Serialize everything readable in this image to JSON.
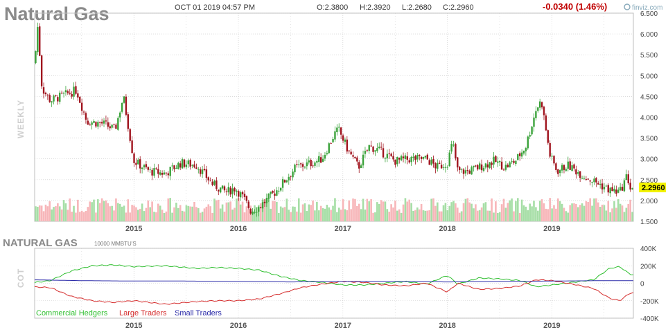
{
  "header": {
    "symbol_title": "Natural Gas",
    "datetime": "OCT 01 2019 04:57 PM",
    "open": "O:2.3800",
    "high": "H:2.3920",
    "low": "L:2.2680",
    "close": "C:2.2960",
    "change": "-0.0340 (1.46%)",
    "brand": "finviz.com"
  },
  "colors": {
    "up": "#3aa23a",
    "down": "#a0141e",
    "vol_up": "#a6dea6",
    "vol_down": "#f7b6b9",
    "commercial": "#2fbf2f",
    "large": "#d42a2a",
    "small": "#2a2aa8",
    "grid": "#c8c8c8",
    "last_bg": "#f3f300"
  },
  "price_panel": {
    "period_label": "WEEKLY",
    "last_price": "2.2960",
    "y_ticks": [
      "1.500",
      "2.000",
      "2.500",
      "3.000",
      "3.500",
      "4.000",
      "4.500",
      "5.000",
      "5.500",
      "6.000",
      "6.500"
    ],
    "x_ticks": [
      "2015",
      "2016",
      "2017",
      "2018",
      "2019"
    ]
  },
  "cot_panel": {
    "label": "COT",
    "title": "NATURAL GAS",
    "units": "10000 MMBTU'S",
    "y_ticks": [
      "400K",
      "200K",
      "0",
      "-200K",
      "-400K"
    ],
    "x_ticks": [
      "2015",
      "2016",
      "2017",
      "2018",
      "2019"
    ],
    "legend": [
      "Commercial Hedgers",
      "Large Traders",
      "Small Traders"
    ]
  },
  "chart_data": [
    {
      "type": "candlestick",
      "title": "Natural Gas",
      "timeframe": "weekly",
      "ylim": [
        1.5,
        6.5
      ],
      "y_scale": "linear",
      "grid": true,
      "close_path": [
        {
          "x": 2014.0,
          "y": 4.6
        },
        {
          "x": 2014.05,
          "y": 5.3
        },
        {
          "x": 2014.08,
          "y": 6.2
        },
        {
          "x": 2014.12,
          "y": 4.7
        },
        {
          "x": 2014.2,
          "y": 4.4
        },
        {
          "x": 2014.3,
          "y": 4.5
        },
        {
          "x": 2014.45,
          "y": 4.65
        },
        {
          "x": 2014.55,
          "y": 3.9
        },
        {
          "x": 2014.7,
          "y": 3.85
        },
        {
          "x": 2014.82,
          "y": 3.7
        },
        {
          "x": 2014.9,
          "y": 4.5
        },
        {
          "x": 2015.0,
          "y": 2.95
        },
        {
          "x": 2015.15,
          "y": 2.7
        },
        {
          "x": 2015.3,
          "y": 2.65
        },
        {
          "x": 2015.45,
          "y": 2.9
        },
        {
          "x": 2015.6,
          "y": 2.85
        },
        {
          "x": 2015.75,
          "y": 2.4
        },
        {
          "x": 2015.88,
          "y": 2.2
        },
        {
          "x": 2015.97,
          "y": 2.3
        },
        {
          "x": 2016.05,
          "y": 2.05
        },
        {
          "x": 2016.12,
          "y": 1.75
        },
        {
          "x": 2016.2,
          "y": 1.85
        },
        {
          "x": 2016.35,
          "y": 2.2
        },
        {
          "x": 2016.45,
          "y": 2.5
        },
        {
          "x": 2016.55,
          "y": 2.8
        },
        {
          "x": 2016.7,
          "y": 2.9
        },
        {
          "x": 2016.8,
          "y": 3.0
        },
        {
          "x": 2016.92,
          "y": 3.6
        },
        {
          "x": 2016.96,
          "y": 3.7
        },
        {
          "x": 2017.05,
          "y": 3.2
        },
        {
          "x": 2017.15,
          "y": 2.8
        },
        {
          "x": 2017.25,
          "y": 3.3
        },
        {
          "x": 2017.35,
          "y": 3.2
        },
        {
          "x": 2017.5,
          "y": 2.95
        },
        {
          "x": 2017.65,
          "y": 3.0
        },
        {
          "x": 2017.8,
          "y": 3.0
        },
        {
          "x": 2017.9,
          "y": 2.8
        },
        {
          "x": 2018.0,
          "y": 2.9
        },
        {
          "x": 2018.05,
          "y": 3.4
        },
        {
          "x": 2018.1,
          "y": 2.7
        },
        {
          "x": 2018.2,
          "y": 2.7
        },
        {
          "x": 2018.35,
          "y": 2.85
        },
        {
          "x": 2018.45,
          "y": 2.95
        },
        {
          "x": 2018.55,
          "y": 2.8
        },
        {
          "x": 2018.65,
          "y": 2.95
        },
        {
          "x": 2018.75,
          "y": 3.3
        },
        {
          "x": 2018.85,
          "y": 4.2
        },
        {
          "x": 2018.9,
          "y": 4.4
        },
        {
          "x": 2018.98,
          "y": 3.1
        },
        {
          "x": 2019.05,
          "y": 2.7
        },
        {
          "x": 2019.15,
          "y": 2.85
        },
        {
          "x": 2019.3,
          "y": 2.6
        },
        {
          "x": 2019.45,
          "y": 2.4
        },
        {
          "x": 2019.55,
          "y": 2.25
        },
        {
          "x": 2019.65,
          "y": 2.2
        },
        {
          "x": 2019.72,
          "y": 2.6
        },
        {
          "x": 2019.75,
          "y": 2.296
        }
      ],
      "volume": "relative, bars at bottom of panel"
    },
    {
      "type": "line",
      "title": "NATURAL GAS",
      "ylabel": "COT",
      "ylim": [
        -400000,
        400000
      ],
      "grid": true,
      "legend_position": "bottom-left",
      "series": [
        {
          "name": "Commercial Hedgers",
          "points": [
            {
              "x": 2014.0,
              "y": 0
            },
            {
              "x": 2014.2,
              "y": 30000
            },
            {
              "x": 2014.4,
              "y": 140000
            },
            {
              "x": 2014.6,
              "y": 200000
            },
            {
              "x": 2014.8,
              "y": 210000
            },
            {
              "x": 2015.0,
              "y": 190000
            },
            {
              "x": 2015.3,
              "y": 200000
            },
            {
              "x": 2015.6,
              "y": 170000
            },
            {
              "x": 2015.8,
              "y": 180000
            },
            {
              "x": 2016.0,
              "y": 170000
            },
            {
              "x": 2016.2,
              "y": 150000
            },
            {
              "x": 2016.4,
              "y": 80000
            },
            {
              "x": 2016.6,
              "y": 30000
            },
            {
              "x": 2016.8,
              "y": 10000
            },
            {
              "x": 2017.0,
              "y": -20000
            },
            {
              "x": 2017.2,
              "y": -20000
            },
            {
              "x": 2017.4,
              "y": 0
            },
            {
              "x": 2017.6,
              "y": 20000
            },
            {
              "x": 2017.8,
              "y": -10000
            },
            {
              "x": 2018.0,
              "y": 90000
            },
            {
              "x": 2018.1,
              "y": -10000
            },
            {
              "x": 2018.3,
              "y": 60000
            },
            {
              "x": 2018.5,
              "y": 50000
            },
            {
              "x": 2018.7,
              "y": 30000
            },
            {
              "x": 2018.85,
              "y": -40000
            },
            {
              "x": 2019.0,
              "y": -20000
            },
            {
              "x": 2019.2,
              "y": 10000
            },
            {
              "x": 2019.4,
              "y": 40000
            },
            {
              "x": 2019.55,
              "y": 170000
            },
            {
              "x": 2019.65,
              "y": 190000
            },
            {
              "x": 2019.75,
              "y": 100000
            }
          ]
        },
        {
          "name": "Large Traders",
          "points": [
            {
              "x": 2014.0,
              "y": -40000
            },
            {
              "x": 2014.2,
              "y": -50000
            },
            {
              "x": 2014.4,
              "y": -150000
            },
            {
              "x": 2014.6,
              "y": -200000
            },
            {
              "x": 2014.8,
              "y": -220000
            },
            {
              "x": 2015.0,
              "y": -200000
            },
            {
              "x": 2015.3,
              "y": -240000
            },
            {
              "x": 2015.6,
              "y": -210000
            },
            {
              "x": 2015.8,
              "y": -200000
            },
            {
              "x": 2016.0,
              "y": -200000
            },
            {
              "x": 2016.2,
              "y": -180000
            },
            {
              "x": 2016.4,
              "y": -120000
            },
            {
              "x": 2016.6,
              "y": -50000
            },
            {
              "x": 2016.8,
              "y": -10000
            },
            {
              "x": 2017.0,
              "y": 20000
            },
            {
              "x": 2017.2,
              "y": 10000
            },
            {
              "x": 2017.4,
              "y": -20000
            },
            {
              "x": 2017.6,
              "y": -30000
            },
            {
              "x": 2017.8,
              "y": 0
            },
            {
              "x": 2018.0,
              "y": -100000
            },
            {
              "x": 2018.1,
              "y": 0
            },
            {
              "x": 2018.3,
              "y": -70000
            },
            {
              "x": 2018.5,
              "y": -60000
            },
            {
              "x": 2018.7,
              "y": -30000
            },
            {
              "x": 2018.85,
              "y": 40000
            },
            {
              "x": 2019.0,
              "y": 30000
            },
            {
              "x": 2019.2,
              "y": -10000
            },
            {
              "x": 2019.4,
              "y": -60000
            },
            {
              "x": 2019.55,
              "y": -170000
            },
            {
              "x": 2019.65,
              "y": -200000
            },
            {
              "x": 2019.75,
              "y": -110000
            }
          ]
        },
        {
          "name": "Small Traders",
          "points": [
            {
              "x": 2014.0,
              "y": 40000
            },
            {
              "x": 2014.5,
              "y": 30000
            },
            {
              "x": 2015.0,
              "y": 25000
            },
            {
              "x": 2015.5,
              "y": 25000
            },
            {
              "x": 2016.0,
              "y": 20000
            },
            {
              "x": 2016.5,
              "y": 15000
            },
            {
              "x": 2017.0,
              "y": 20000
            },
            {
              "x": 2017.5,
              "y": 20000
            },
            {
              "x": 2018.0,
              "y": 15000
            },
            {
              "x": 2018.5,
              "y": 20000
            },
            {
              "x": 2019.0,
              "y": 25000
            },
            {
              "x": 2019.5,
              "y": 30000
            },
            {
              "x": 2019.75,
              "y": 30000
            }
          ]
        }
      ]
    }
  ]
}
